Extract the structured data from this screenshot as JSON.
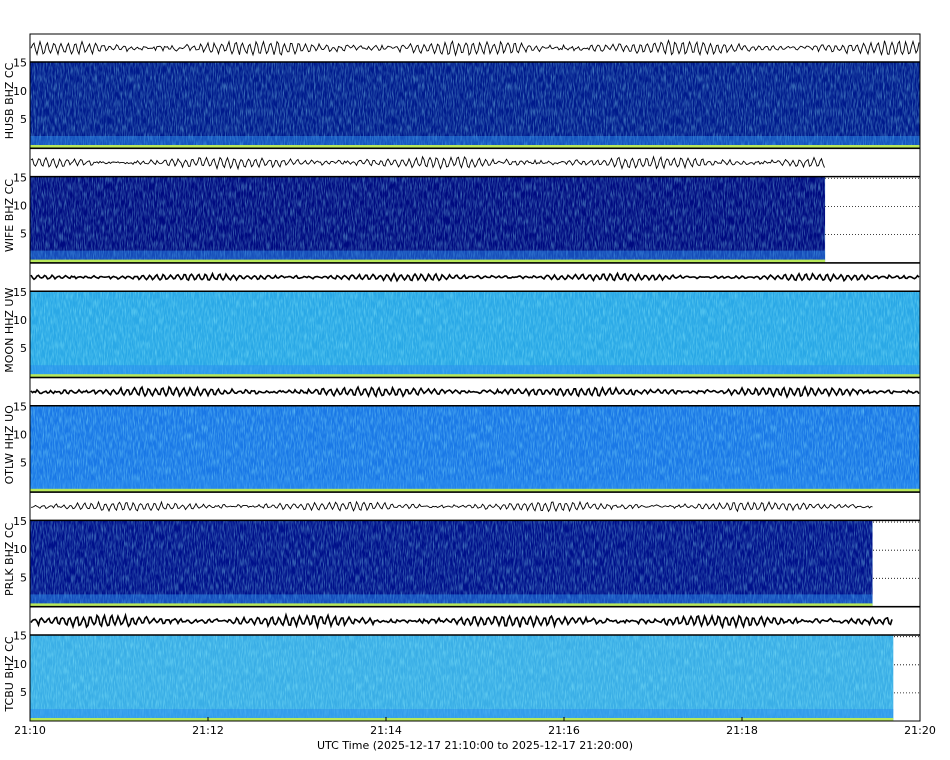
{
  "chart_data": {
    "type": "spectrogram",
    "xlabel": "UTC Time (2025-12-17 21:10:00 to 2025-12-17 21:20:00)",
    "xlim": [
      "21:10",
      "21:20"
    ],
    "xticks": [
      "21:10",
      "21:12",
      "21:14",
      "21:16",
      "21:18",
      "21:20"
    ],
    "ylim": [
      0,
      15.3
    ],
    "yticks": [
      5,
      10,
      15
    ],
    "grid": true,
    "panels": [
      {
        "name": "HUSB BHZ CC",
        "data_end": "21:20",
        "color": "#001a8c"
      },
      {
        "name": "WIFE BHZ CC",
        "data_end": "21:18:56",
        "color": "#000a80"
      },
      {
        "name": "MOON HHZ UW",
        "data_end": "21:20",
        "color": "#2aa8e6"
      },
      {
        "name": "OTLW HHZ UO",
        "data_end": "21:20",
        "color": "#1a78e6"
      },
      {
        "name": "PRLK BHZ CC",
        "data_end": "21:19:28",
        "color": "#00108a"
      },
      {
        "name": "TCBU BHZ CC",
        "data_end": "21:19:42",
        "color": "#3aaee6"
      }
    ]
  }
}
